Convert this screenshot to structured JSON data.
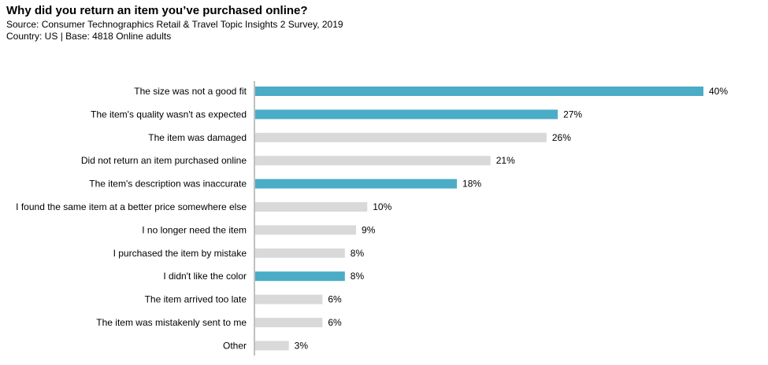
{
  "header": {
    "title": "Why did you return an item you’ve purchased online?",
    "source": "Source: Consumer Technographics Retail & Travel Topic Insights 2 Survey, 2019",
    "country": "Country:  US | Base: 4818 Online adults"
  },
  "chart_data": {
    "type": "bar",
    "orientation": "horizontal",
    "categories": [
      "The size was not a good fit",
      "The item's quality wasn't as expected",
      "The item was damaged",
      "Did not return an item purchased online",
      "The item's description was inaccurate",
      "I found the same item at a better price somewhere else",
      "I no longer need the item",
      "I purchased the item by mistake",
      "I didn't like the color",
      "The item arrived too late",
      "The item was mistakenly sent to me",
      "Other"
    ],
    "values": [
      40,
      27,
      26,
      21,
      18,
      10,
      9,
      8,
      8,
      6,
      6,
      3
    ],
    "value_labels": [
      "40%",
      "27%",
      "26%",
      "21%",
      "18%",
      "10%",
      "9%",
      "8%",
      "8%",
      "6%",
      "6%",
      "3%"
    ],
    "highlighted": [
      true,
      true,
      false,
      false,
      true,
      false,
      false,
      false,
      true,
      false,
      false,
      false
    ],
    "colors": {
      "highlight": "#4bacc6",
      "default": "#d9d9d9",
      "axis": "#808080"
    },
    "xlim": [
      0,
      40
    ],
    "grid": false,
    "legend": "none"
  }
}
